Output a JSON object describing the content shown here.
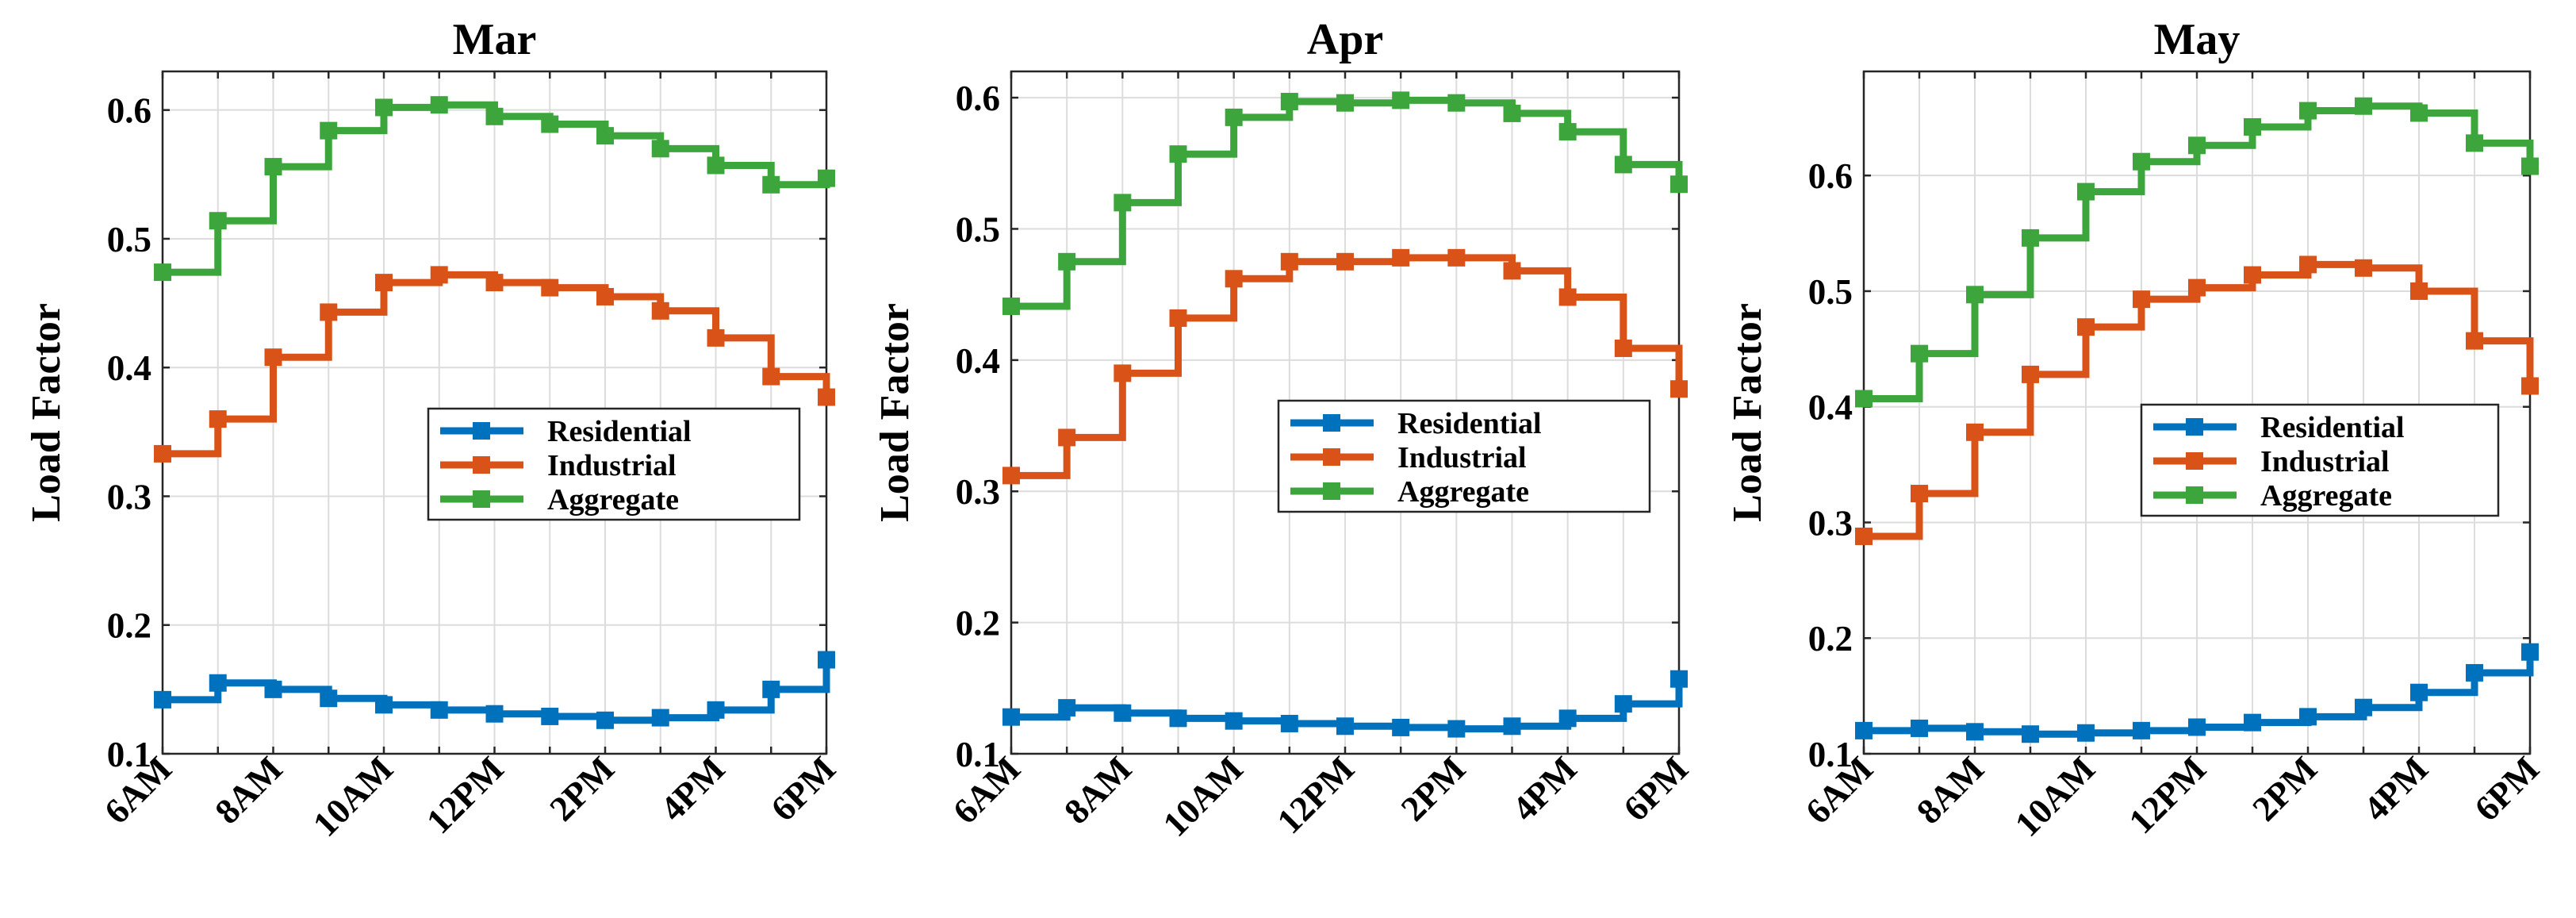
{
  "chart_data": [
    {
      "type": "line",
      "step": "post",
      "title": "Mar",
      "xlabel": "",
      "ylabel": "Load Factor",
      "x": [
        "6AM",
        "7AM",
        "8AM",
        "9AM",
        "10AM",
        "11AM",
        "12PM",
        "1PM",
        "2PM",
        "3PM",
        "4PM",
        "5PM",
        "6PM"
      ],
      "xticklabels": [
        "6AM",
        "8AM",
        "10AM",
        "12PM",
        "2PM",
        "4PM",
        "6PM"
      ],
      "ylim": [
        0.1,
        0.63
      ],
      "yticks": [
        0.1,
        0.2,
        0.3,
        0.4,
        0.5,
        0.6
      ],
      "yticklabels": [
        "0.1",
        "0.2",
        "0.3",
        "0.4",
        "0.5",
        "0.6"
      ],
      "grid": true,
      "legend_position": "center-right",
      "series": [
        {
          "name": "Residential",
          "color": "#0072BD",
          "values": [
            0.142,
            0.155,
            0.15,
            0.143,
            0.138,
            0.134,
            0.131,
            0.129,
            0.126,
            0.128,
            0.134,
            0.15,
            0.173
          ]
        },
        {
          "name": "Industrial",
          "color": "#D95319",
          "values": [
            0.333,
            0.36,
            0.408,
            0.443,
            0.466,
            0.472,
            0.466,
            0.462,
            0.455,
            0.444,
            0.423,
            0.393,
            0.377
          ]
        },
        {
          "name": "Aggregate",
          "color": "#3CA53C",
          "values": [
            0.474,
            0.514,
            0.556,
            0.584,
            0.602,
            0.604,
            0.595,
            0.589,
            0.58,
            0.57,
            0.557,
            0.542,
            0.547
          ]
        }
      ]
    },
    {
      "type": "line",
      "step": "post",
      "title": "Apr",
      "xlabel": "",
      "ylabel": "Load Factor",
      "x": [
        "6AM",
        "7AM",
        "8AM",
        "9AM",
        "10AM",
        "11AM",
        "12PM",
        "1PM",
        "2PM",
        "3PM",
        "4PM",
        "5PM",
        "6PM"
      ],
      "xticklabels": [
        "6AM",
        "8AM",
        "10AM",
        "12PM",
        "2PM",
        "4PM",
        "6PM"
      ],
      "ylim": [
        0.1,
        0.62
      ],
      "yticks": [
        0.1,
        0.2,
        0.3,
        0.4,
        0.5,
        0.6
      ],
      "yticklabels": [
        "0.1",
        "0.2",
        "0.3",
        "0.4",
        "0.5",
        "0.6"
      ],
      "grid": true,
      "legend_position": "center-right",
      "series": [
        {
          "name": "Residential",
          "color": "#0072BD",
          "values": [
            0.128,
            0.135,
            0.131,
            0.127,
            0.125,
            0.123,
            0.121,
            0.12,
            0.119,
            0.121,
            0.127,
            0.138,
            0.157
          ]
        },
        {
          "name": "Industrial",
          "color": "#D95319",
          "values": [
            0.312,
            0.341,
            0.39,
            0.432,
            0.462,
            0.475,
            0.475,
            0.478,
            0.478,
            0.468,
            0.448,
            0.409,
            0.378
          ]
        },
        {
          "name": "Aggregate",
          "color": "#3CA53C",
          "values": [
            0.441,
            0.475,
            0.52,
            0.557,
            0.585,
            0.597,
            0.596,
            0.598,
            0.596,
            0.588,
            0.574,
            0.549,
            0.534
          ]
        }
      ]
    },
    {
      "type": "line",
      "step": "post",
      "title": "May",
      "xlabel": "",
      "ylabel": "Load Factor",
      "x": [
        "6AM",
        "7AM",
        "8AM",
        "9AM",
        "10AM",
        "11AM",
        "12PM",
        "1PM",
        "2PM",
        "3PM",
        "4PM",
        "5PM",
        "6PM"
      ],
      "xticklabels": [
        "6AM",
        "8AM",
        "10AM",
        "12PM",
        "2PM",
        "4PM",
        "6PM"
      ],
      "ylim": [
        0.1,
        0.69
      ],
      "yticks": [
        0.1,
        0.2,
        0.3,
        0.4,
        0.5,
        0.6
      ],
      "yticklabels": [
        "0.1",
        "0.2",
        "0.3",
        "0.4",
        "0.5",
        "0.6"
      ],
      "grid": true,
      "legend_position": "center-right",
      "series": [
        {
          "name": "Residential",
          "color": "#0072BD",
          "values": [
            0.12,
            0.122,
            0.119,
            0.117,
            0.118,
            0.12,
            0.123,
            0.127,
            0.132,
            0.14,
            0.153,
            0.17,
            0.188
          ]
        },
        {
          "name": "Industrial",
          "color": "#D95319",
          "values": [
            0.288,
            0.325,
            0.378,
            0.428,
            0.469,
            0.493,
            0.503,
            0.514,
            0.523,
            0.52,
            0.5,
            0.457,
            0.418
          ]
        },
        {
          "name": "Aggregate",
          "color": "#3CA53C",
          "values": [
            0.407,
            0.446,
            0.497,
            0.546,
            0.586,
            0.612,
            0.626,
            0.642,
            0.656,
            0.66,
            0.654,
            0.628,
            0.608
          ]
        }
      ]
    }
  ]
}
